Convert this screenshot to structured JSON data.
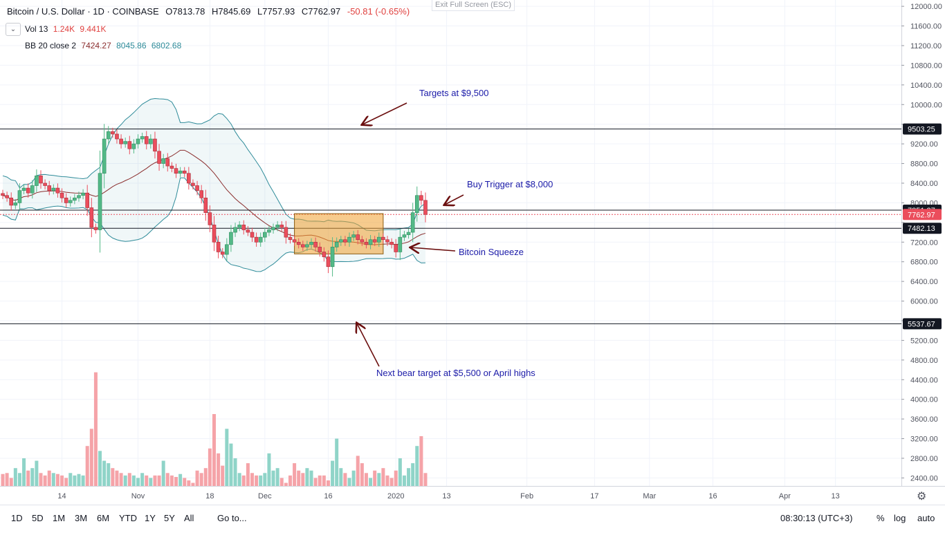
{
  "header": {
    "symbol": "Bitcoin / U.S. Dollar · 1D · COINBASE",
    "open": "O7813.78",
    "high": "H7845.69",
    "low": "L7757.93",
    "close": "C7762.97",
    "change": "-50.81 (-0.65%)",
    "exit_full_screen": "Exit Full Screen (ESC)"
  },
  "indicators": {
    "vol": {
      "name": "Vol 13",
      "v1": "1.24K",
      "v2": "9.441K"
    },
    "bb": {
      "name": "BB 20 close 2",
      "basis": "7424.27",
      "upper": "8045.86",
      "lower": "6802.68"
    }
  },
  "annotations": {
    "targets": "Targets at $9,500",
    "buy_trigger": "Buy Trigger at $8,000",
    "squeeze": "Bitcoin Squeeze",
    "bear_target": "Next bear target at $5,500 or April highs"
  },
  "bottom_bar": {
    "ranges": [
      "1D",
      "5D",
      "1M",
      "3M",
      "6M",
      "YTD",
      "1Y",
      "5Y",
      "All"
    ],
    "goto": "Go to...",
    "time": "08:30:13 (UTC+3)",
    "percent": "%",
    "log": "log",
    "auto": "auto"
  },
  "colors": {
    "up": "#53b987",
    "down": "#eb4d5c",
    "bb_band": "#2e8b99",
    "bb_basis": "#8b2e2e",
    "squeeze_box": "#f0a030"
  },
  "chart_data": {
    "type": "candlestick",
    "title": "Bitcoin / U.S. Dollar · 1D · COINBASE",
    "ylim": [
      2100,
      12100
    ],
    "y_ticks": [
      2400,
      2800,
      3200,
      3600,
      4000,
      4400,
      4800,
      5200,
      5600,
      6000,
      6400,
      6800,
      7200,
      7600,
      8000,
      8400,
      8800,
      9200,
      9600,
      10000,
      10400,
      10800,
      11200,
      11600,
      12000
    ],
    "y_tick_labels": [
      "2400.00",
      "2800.00",
      "3200.00",
      "3600.00",
      "4000.00",
      "4400.00",
      "4800.00",
      "5200.00",
      "5600.00",
      "6000.00",
      "6400.00",
      "6800.00",
      "7200.00",
      "7600.00",
      "8000.00",
      "8400.00",
      "8800.00",
      "9200.00",
      "9600.00",
      "10000.00",
      "10400.00",
      "10800.00",
      "11200.00",
      "11600.00",
      "12000.00"
    ],
    "x_ticks": [
      {
        "label": "14",
        "day": 14
      },
      {
        "label": "Nov",
        "day": 32
      },
      {
        "label": "18",
        "day": 49
      },
      {
        "label": "Dec",
        "day": 62
      },
      {
        "label": "16",
        "day": 77
      },
      {
        "label": "2020",
        "day": 93
      },
      {
        "label": "13",
        "day": 105
      },
      {
        "label": "Feb",
        "day": 124
      },
      {
        "label": "17",
        "day": 140
      },
      {
        "label": "Mar",
        "day": 153
      },
      {
        "label": "16",
        "day": 168
      },
      {
        "label": "Apr",
        "day": 185
      },
      {
        "label": "13",
        "day": 197
      }
    ],
    "horizontal_lines": [
      {
        "price": 9503.25,
        "label": "9503.25"
      },
      {
        "price": 7851.37,
        "label": "7851.37"
      },
      {
        "price": 7482.13,
        "label": "7482.13"
      },
      {
        "price": 5537.67,
        "label": "5537.67"
      }
    ],
    "last_price": {
      "price": 7762.97,
      "label": "7762.97"
    },
    "squeeze_box": {
      "from_day": 69,
      "to_day": 90,
      "low": 6960,
      "high": 7780
    },
    "closes": [
      8150,
      8100,
      7950,
      8000,
      8250,
      8300,
      8200,
      8350,
      8550,
      8400,
      8350,
      8250,
      8300,
      8200,
      8100,
      8000,
      8050,
      8100,
      8150,
      8200,
      7900,
      7500,
      7450,
      8600,
      9300,
      9450,
      9400,
      9300,
      9200,
      9250,
      9100,
      9200,
      9300,
      9350,
      9200,
      9300,
      9050,
      8800,
      8900,
      8750,
      8700,
      8600,
      8650,
      8600,
      8400,
      8350,
      8250,
      8100,
      7800,
      7550,
      7200,
      7000,
      6950,
      7150,
      7400,
      7500,
      7550,
      7450,
      7400,
      7300,
      7200,
      7300,
      7400,
      7450,
      7500,
      7550,
      7500,
      7300,
      7250,
      7200,
      7150,
      7100,
      7150,
      7200,
      7100,
      7000,
      6900,
      6700,
      7100,
      7200,
      7250,
      7200,
      7300,
      7350,
      7250,
      7200,
      7150,
      7250,
      7200,
      7300,
      7250,
      7200,
      7150,
      7000,
      7300,
      7350,
      7400,
      7800,
      8150,
      8050,
      7763
    ],
    "volumes": [
      2480,
      2500,
      2400,
      2600,
      2500,
      2800,
      2550,
      2600,
      2750,
      2500,
      2450,
      2550,
      2500,
      2480,
      2450,
      2400,
      2500,
      2450,
      2480,
      2450,
      3050,
      3400,
      4550,
      2950,
      2750,
      2700,
      2600,
      2550,
      2500,
      2450,
      2500,
      2450,
      2400,
      2500,
      2450,
      2400,
      2450,
      2450,
      2750,
      2500,
      2450,
      2420,
      2480,
      2400,
      2350,
      2300,
      2550,
      2500,
      2600,
      3000,
      3700,
      2900,
      2650,
      3400,
      3100,
      2800,
      2500,
      2450,
      2700,
      2500,
      2450,
      2450,
      2500,
      2900,
      2550,
      2600,
      2400,
      2300,
      2450,
      2700,
      2550,
      2500,
      2600,
      2550,
      2400,
      2450,
      2450,
      2350,
      2750,
      3200,
      2600,
      2500,
      2400,
      2550,
      2850,
      2700,
      2500,
      2400,
      2550,
      2500,
      2600,
      2450,
      2400,
      2550,
      2800,
      2450,
      2600,
      2700,
      3050,
      3250,
      2500
    ]
  }
}
